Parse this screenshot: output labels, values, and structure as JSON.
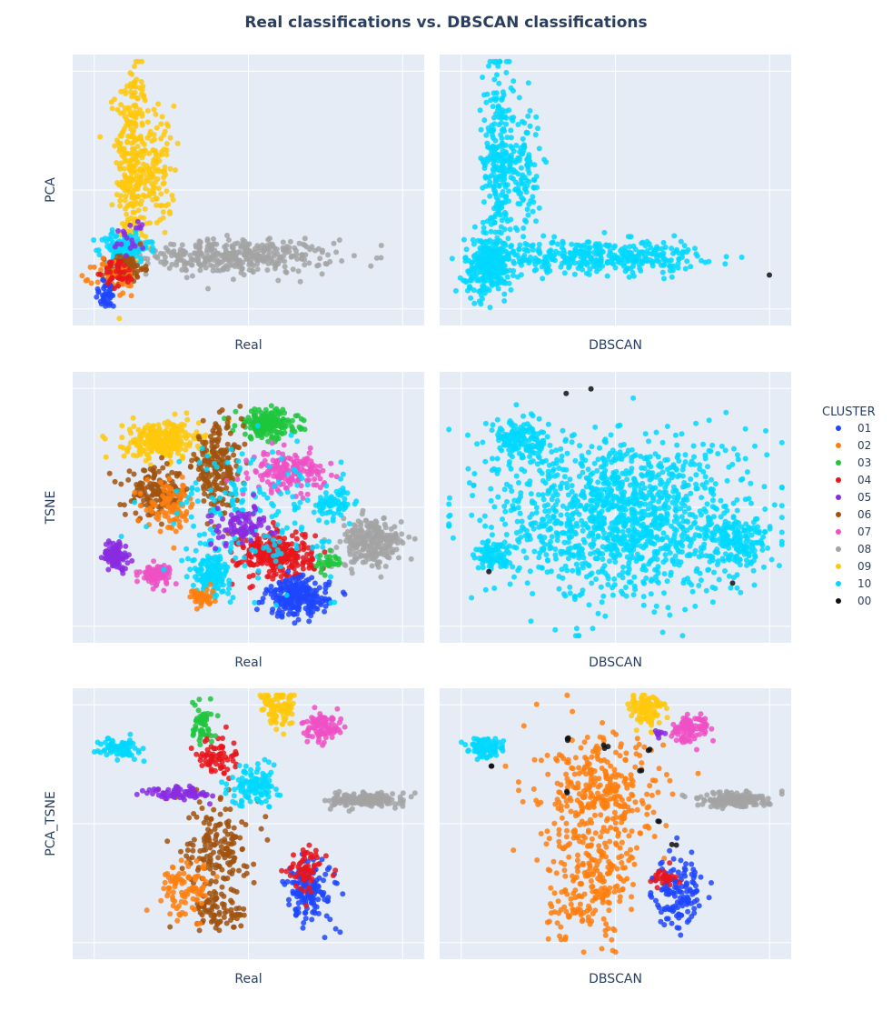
{
  "chart_data": {
    "type": "scatter",
    "title": "Real classifications vs. DBSCAN classifications",
    "legend": {
      "title": "CLUSTER",
      "placement": "right",
      "entries": [
        {
          "name": "01",
          "color": "#1f46ff"
        },
        {
          "name": "02",
          "color": "#ff7f0e"
        },
        {
          "name": "03",
          "color": "#1fc63c"
        },
        {
          "name": "04",
          "color": "#e8151b"
        },
        {
          "name": "05",
          "color": "#8a2be2"
        },
        {
          "name": "06",
          "color": "#a0520e"
        },
        {
          "name": "07",
          "color": "#ef50c4"
        },
        {
          "name": "08",
          "color": "#a3a3a3"
        },
        {
          "name": "09",
          "color": "#ffc80a"
        },
        {
          "name": "10",
          "color": "#00d8ff"
        },
        {
          "name": "00",
          "color": "#111111"
        }
      ]
    },
    "panels": [
      {
        "id": "pca-real",
        "row": 0,
        "col": 0,
        "xlabel": "Real",
        "ylabel": "PCA",
        "grid": true,
        "tick_labels": false
      },
      {
        "id": "pca-dbscan",
        "row": 0,
        "col": 1,
        "xlabel": "DBSCAN",
        "ylabel": "",
        "grid": true,
        "tick_labels": false
      },
      {
        "id": "tsne-real",
        "row": 1,
        "col": 0,
        "xlabel": "Real",
        "ylabel": "TSNE",
        "grid": true,
        "tick_labels": false
      },
      {
        "id": "tsne-dbscan",
        "row": 1,
        "col": 1,
        "xlabel": "DBSCAN",
        "ylabel": "",
        "grid": true,
        "tick_labels": false
      },
      {
        "id": "pcatsne-real",
        "row": 2,
        "col": 0,
        "xlabel": "Real",
        "ylabel": "PCA_TSNE",
        "grid": true,
        "tick_labels": false
      },
      {
        "id": "pcatsne-dbscan",
        "row": 2,
        "col": 1,
        "xlabel": "DBSCAN",
        "ylabel": "",
        "grid": true,
        "tick_labels": false
      }
    ],
    "x_range": [
      -0.07,
      1.07
    ],
    "y_range": [
      -0.07,
      1.07
    ],
    "clusters": {
      "pca-real": [
        {
          "label": "09",
          "x": 0.12,
          "y": 0.62,
          "sx": 0.025,
          "sy": 0.22,
          "n": 260
        },
        {
          "label": "09",
          "x": 0.2,
          "y": 0.58,
          "sx": 0.03,
          "sy": 0.14,
          "n": 120
        },
        {
          "label": "08",
          "x": 0.45,
          "y": 0.22,
          "sx": 0.16,
          "sy": 0.035,
          "n": 380
        },
        {
          "label": "10",
          "x": 0.1,
          "y": 0.26,
          "sx": 0.04,
          "sy": 0.03,
          "n": 120
        },
        {
          "label": "06",
          "x": 0.1,
          "y": 0.17,
          "sx": 0.03,
          "sy": 0.03,
          "n": 90
        },
        {
          "label": "02",
          "x": 0.07,
          "y": 0.13,
          "sx": 0.035,
          "sy": 0.04,
          "n": 60
        },
        {
          "label": "01",
          "x": 0.04,
          "y": 0.06,
          "sx": 0.02,
          "sy": 0.03,
          "n": 40
        },
        {
          "label": "04",
          "x": 0.08,
          "y": 0.15,
          "sx": 0.025,
          "sy": 0.03,
          "n": 40
        },
        {
          "label": "05",
          "x": 0.12,
          "y": 0.3,
          "sx": 0.03,
          "sy": 0.04,
          "n": 20
        }
      ],
      "pca-dbscan": [
        {
          "label": "10",
          "x": 0.12,
          "y": 0.62,
          "sx": 0.025,
          "sy": 0.22,
          "n": 260
        },
        {
          "label": "10",
          "x": 0.2,
          "y": 0.58,
          "sx": 0.03,
          "sy": 0.14,
          "n": 120
        },
        {
          "label": "10",
          "x": 0.45,
          "y": 0.22,
          "sx": 0.16,
          "sy": 0.035,
          "n": 380
        },
        {
          "label": "10",
          "x": 0.09,
          "y": 0.18,
          "sx": 0.04,
          "sy": 0.06,
          "n": 260
        },
        {
          "label": "00",
          "x": 1.0,
          "y": 0.14,
          "sx": 0.001,
          "sy": 0.001,
          "n": 1
        }
      ],
      "tsne-real": [
        {
          "label": "05",
          "x": 0.07,
          "y": 0.3,
          "sx": 0.02,
          "sy": 0.03,
          "n": 90
        },
        {
          "label": "09",
          "x": 0.22,
          "y": 0.78,
          "sx": 0.06,
          "sy": 0.04,
          "n": 260
        },
        {
          "label": "03",
          "x": 0.56,
          "y": 0.85,
          "sx": 0.05,
          "sy": 0.03,
          "n": 200
        },
        {
          "label": "06",
          "x": 0.4,
          "y": 0.67,
          "sx": 0.04,
          "sy": 0.09,
          "n": 200
        },
        {
          "label": "06",
          "x": 0.2,
          "y": 0.56,
          "sx": 0.05,
          "sy": 0.05,
          "n": 150
        },
        {
          "label": "02",
          "x": 0.25,
          "y": 0.5,
          "sx": 0.04,
          "sy": 0.05,
          "n": 90
        },
        {
          "label": "07",
          "x": 0.63,
          "y": 0.65,
          "sx": 0.06,
          "sy": 0.04,
          "n": 170
        },
        {
          "label": "07",
          "x": 0.2,
          "y": 0.22,
          "sx": 0.025,
          "sy": 0.02,
          "n": 90
        },
        {
          "label": "04",
          "x": 0.59,
          "y": 0.3,
          "sx": 0.06,
          "sy": 0.05,
          "n": 280
        },
        {
          "label": "01",
          "x": 0.66,
          "y": 0.12,
          "sx": 0.05,
          "sy": 0.04,
          "n": 240
        },
        {
          "label": "08",
          "x": 0.9,
          "y": 0.35,
          "sx": 0.05,
          "sy": 0.05,
          "n": 240
        },
        {
          "label": "10",
          "x": 0.38,
          "y": 0.22,
          "sx": 0.03,
          "sy": 0.04,
          "n": 150
        },
        {
          "label": "10",
          "x": 0.78,
          "y": 0.52,
          "sx": 0.03,
          "sy": 0.03,
          "n": 70
        },
        {
          "label": "10",
          "x": 0.5,
          "y": 0.48,
          "sx": 0.14,
          "sy": 0.14,
          "n": 180
        },
        {
          "label": "05",
          "x": 0.48,
          "y": 0.42,
          "sx": 0.05,
          "sy": 0.04,
          "n": 90
        },
        {
          "label": "02",
          "x": 0.35,
          "y": 0.12,
          "sx": 0.02,
          "sy": 0.02,
          "n": 40
        },
        {
          "label": "03",
          "x": 0.75,
          "y": 0.27,
          "sx": 0.02,
          "sy": 0.02,
          "n": 30
        }
      ],
      "tsne-dbscan": [
        {
          "label": "10",
          "x": 0.52,
          "y": 0.46,
          "sx": 0.2,
          "sy": 0.17,
          "n": 1300
        },
        {
          "label": "10",
          "x": 0.1,
          "y": 0.3,
          "sx": 0.03,
          "sy": 0.03,
          "n": 90
        },
        {
          "label": "10",
          "x": 0.2,
          "y": 0.78,
          "sx": 0.05,
          "sy": 0.04,
          "n": 150
        },
        {
          "label": "10",
          "x": 0.9,
          "y": 0.36,
          "sx": 0.05,
          "sy": 0.05,
          "n": 150
        },
        {
          "label": "00",
          "x": 0.34,
          "y": 0.98,
          "sx": 0.001,
          "sy": 0.001,
          "n": 1
        },
        {
          "label": "00",
          "x": 0.42,
          "y": 1.0,
          "sx": 0.001,
          "sy": 0.001,
          "n": 1
        },
        {
          "label": "00",
          "x": 0.09,
          "y": 0.23,
          "sx": 0.001,
          "sy": 0.001,
          "n": 1
        },
        {
          "label": "00",
          "x": 0.88,
          "y": 0.18,
          "sx": 0.001,
          "sy": 0.001,
          "n": 1
        }
      ],
      "pcatsne-real": [
        {
          "label": "10",
          "x": 0.08,
          "y": 0.82,
          "sx": 0.03,
          "sy": 0.02,
          "n": 90
        },
        {
          "label": "09",
          "x": 0.6,
          "y": 0.98,
          "sx": 0.03,
          "sy": 0.04,
          "n": 90
        },
        {
          "label": "07",
          "x": 0.74,
          "y": 0.9,
          "sx": 0.03,
          "sy": 0.03,
          "n": 90
        },
        {
          "label": "08",
          "x": 0.88,
          "y": 0.6,
          "sx": 0.06,
          "sy": 0.015,
          "n": 170
        },
        {
          "label": "06",
          "x": 0.4,
          "y": 0.42,
          "sx": 0.05,
          "sy": 0.1,
          "n": 160
        },
        {
          "label": "04",
          "x": 0.4,
          "y": 0.78,
          "sx": 0.03,
          "sy": 0.04,
          "n": 70
        },
        {
          "label": "03",
          "x": 0.35,
          "y": 0.92,
          "sx": 0.02,
          "sy": 0.04,
          "n": 50
        },
        {
          "label": "05",
          "x": 0.28,
          "y": 0.63,
          "sx": 0.05,
          "sy": 0.015,
          "n": 70
        },
        {
          "label": "10",
          "x": 0.52,
          "y": 0.66,
          "sx": 0.04,
          "sy": 0.04,
          "n": 120
        },
        {
          "label": "01",
          "x": 0.7,
          "y": 0.22,
          "sx": 0.04,
          "sy": 0.07,
          "n": 140
        },
        {
          "label": "06",
          "x": 0.4,
          "y": 0.13,
          "sx": 0.05,
          "sy": 0.04,
          "n": 80
        },
        {
          "label": "02",
          "x": 0.3,
          "y": 0.23,
          "sx": 0.04,
          "sy": 0.06,
          "n": 90
        },
        {
          "label": "04",
          "x": 0.69,
          "y": 0.3,
          "sx": 0.03,
          "sy": 0.05,
          "n": 60
        }
      ],
      "pcatsne-dbscan": [
        {
          "label": "10",
          "x": 0.08,
          "y": 0.82,
          "sx": 0.03,
          "sy": 0.02,
          "n": 90
        },
        {
          "label": "09",
          "x": 0.6,
          "y": 0.98,
          "sx": 0.03,
          "sy": 0.04,
          "n": 90
        },
        {
          "label": "05",
          "x": 0.64,
          "y": 0.88,
          "sx": 0.008,
          "sy": 0.008,
          "n": 10
        },
        {
          "label": "07",
          "x": 0.74,
          "y": 0.9,
          "sx": 0.03,
          "sy": 0.03,
          "n": 90
        },
        {
          "label": "08",
          "x": 0.88,
          "y": 0.6,
          "sx": 0.06,
          "sy": 0.015,
          "n": 170
        },
        {
          "label": "02",
          "x": 0.46,
          "y": 0.62,
          "sx": 0.1,
          "sy": 0.12,
          "n": 320
        },
        {
          "label": "02",
          "x": 0.42,
          "y": 0.25,
          "sx": 0.07,
          "sy": 0.12,
          "n": 220
        },
        {
          "label": "01",
          "x": 0.7,
          "y": 0.22,
          "sx": 0.04,
          "sy": 0.07,
          "n": 140
        },
        {
          "label": "04",
          "x": 0.66,
          "y": 0.27,
          "sx": 0.02,
          "sy": 0.02,
          "n": 25
        },
        {
          "label": "00",
          "x": 0.35,
          "y": 0.85,
          "sx": 0.006,
          "sy": 0.006,
          "n": 3
        },
        {
          "label": "00",
          "x": 0.47,
          "y": 0.82,
          "sx": 0.006,
          "sy": 0.006,
          "n": 3
        },
        {
          "label": "00",
          "x": 0.59,
          "y": 0.73,
          "sx": 0.006,
          "sy": 0.006,
          "n": 2
        },
        {
          "label": "00",
          "x": 0.61,
          "y": 0.82,
          "sx": 0.006,
          "sy": 0.006,
          "n": 2
        },
        {
          "label": "00",
          "x": 0.1,
          "y": 0.74,
          "sx": 0.004,
          "sy": 0.004,
          "n": 2
        },
        {
          "label": "00",
          "x": 0.35,
          "y": 0.63,
          "sx": 0.004,
          "sy": 0.004,
          "n": 2
        },
        {
          "label": "00",
          "x": 0.64,
          "y": 0.51,
          "sx": 0.004,
          "sy": 0.004,
          "n": 2
        },
        {
          "label": "00",
          "x": 0.69,
          "y": 0.41,
          "sx": 0.004,
          "sy": 0.004,
          "n": 2
        }
      ]
    }
  }
}
